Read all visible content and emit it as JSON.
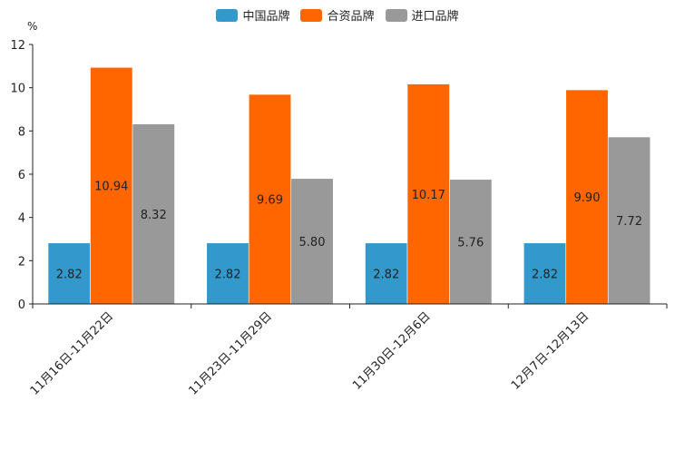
{
  "chart_data": {
    "type": "bar",
    "unit": "%",
    "categories": [
      "11月16日-11月22日",
      "11月23日-11月29日",
      "11月30日-12月6日",
      "12月7日-12月13日"
    ],
    "series": [
      {
        "name": "中国品牌",
        "color": "#3399cc",
        "values": [
          2.82,
          2.82,
          2.82,
          2.82
        ],
        "labels": [
          "2.82",
          "2.82",
          "2.82",
          "2.82"
        ]
      },
      {
        "name": "合资品牌",
        "color": "#ff6600",
        "values": [
          10.94,
          9.69,
          10.17,
          9.9
        ],
        "labels": [
          "10.94",
          "9.69",
          "10.17",
          "9.90"
        ]
      },
      {
        "name": "进口品牌",
        "color": "#999999",
        "values": [
          8.32,
          5.8,
          5.76,
          7.72
        ],
        "labels": [
          "8.32",
          "5.80",
          "5.76",
          "7.72"
        ]
      }
    ],
    "ylim": [
      0,
      12
    ],
    "yticks": [
      "0",
      "2",
      "4",
      "6",
      "8",
      "10",
      "12"
    ],
    "legend_position": "top-center",
    "grid": false
  }
}
